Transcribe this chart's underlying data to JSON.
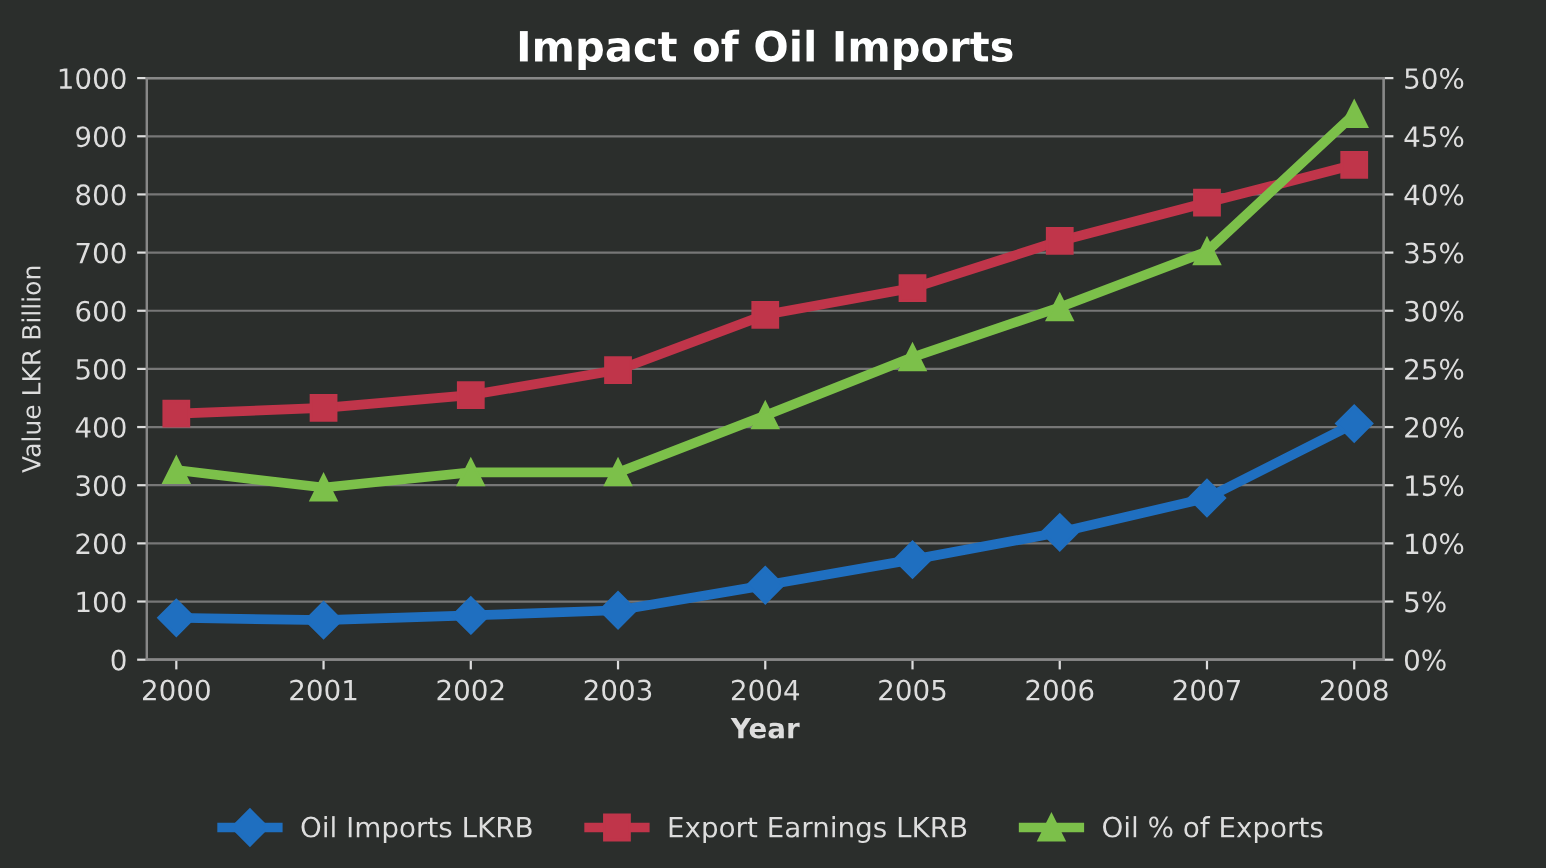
{
  "chart_data": {
    "type": "line",
    "title": "Impact of Oil Imports",
    "xlabel": "Year",
    "ylabel": "Value LKR Billion",
    "categories": [
      "2000",
      "2001",
      "2002",
      "2003",
      "2004",
      "2005",
      "2006",
      "2007",
      "2008"
    ],
    "series": [
      {
        "name": "Oil Imports LKRB",
        "color": "#1f6fc0",
        "marker": "diamond",
        "values": [
          72,
          68,
          76,
          85,
          128,
          172,
          219,
          278,
          406
        ]
      },
      {
        "name": "Export Earnings LKRB",
        "color": "#c0354a",
        "marker": "square",
        "values": [
          423,
          433,
          455,
          498,
          593,
          639,
          720,
          786,
          851
        ]
      },
      {
        "name": "Oil % of Exports",
        "color": "#7cc04a",
        "marker": "triangle",
        "axis": "y2",
        "values": [
          16.3,
          14.8,
          16.1,
          16.1,
          21.0,
          26.0,
          30.3,
          35.1,
          46.9
        ]
      }
    ],
    "ylim": [
      0,
      1000
    ],
    "yticks": [
      0,
      100,
      200,
      300,
      400,
      500,
      600,
      700,
      800,
      900,
      1000
    ],
    "y2lim": [
      0,
      50
    ],
    "y2ticks": [
      {
        "value": 0,
        "label": "0%"
      },
      {
        "value": 5,
        "label": "5%"
      },
      {
        "value": 10,
        "label": "10%"
      },
      {
        "value": 15,
        "label": "15%"
      },
      {
        "value": 20,
        "label": "20%"
      },
      {
        "value": 25,
        "label": "25%"
      },
      {
        "value": 30,
        "label": "30%"
      },
      {
        "value": 35,
        "label": "35%"
      },
      {
        "value": 40,
        "label": "40%"
      },
      {
        "value": 45,
        "label": "45%"
      },
      {
        "value": 50,
        "label": "50%"
      }
    ],
    "grid": "y",
    "legend": "bottom",
    "line_style": "solid"
  }
}
